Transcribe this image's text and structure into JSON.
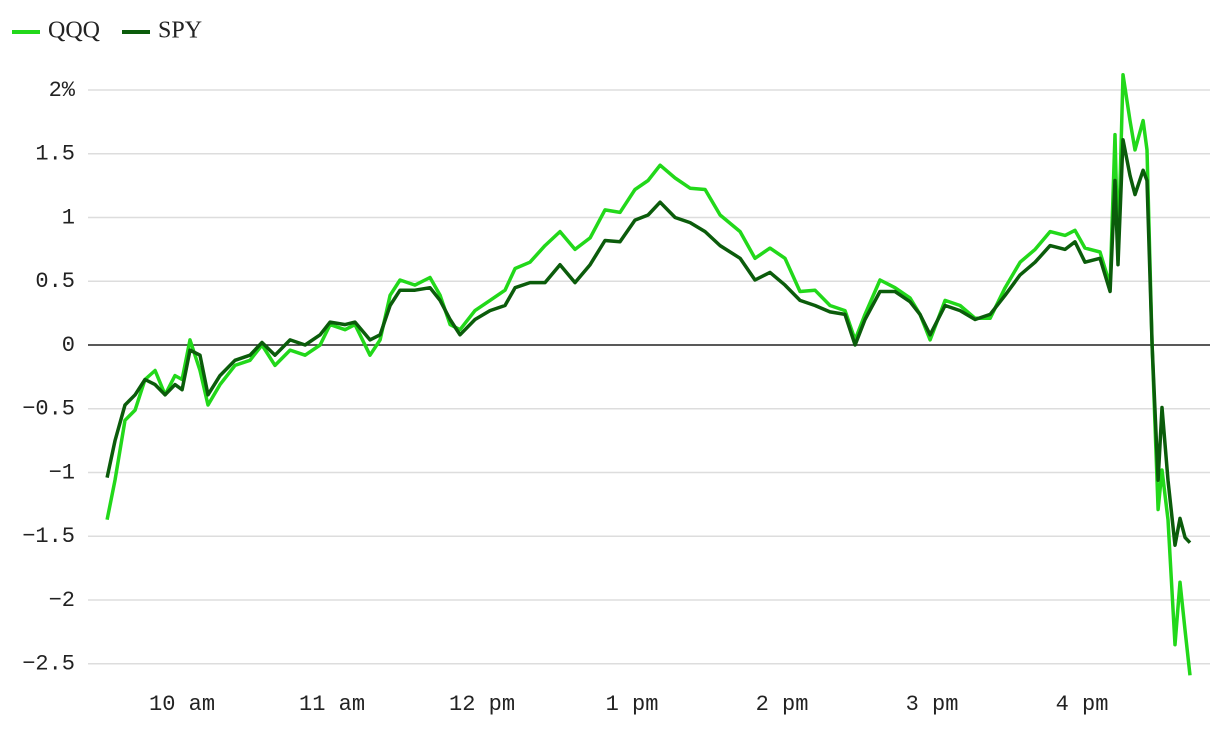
{
  "chart_data": {
    "type": "line",
    "x": [
      9.5,
      9.553,
      9.62,
      9.687,
      9.753,
      9.82,
      9.887,
      9.953,
      10,
      10.053,
      10.12,
      10.173,
      10.253,
      10.353,
      10.453,
      10.533,
      10.62,
      10.72,
      10.82,
      10.92,
      10.987,
      11.087,
      11.153,
      11.253,
      11.32,
      11.387,
      11.453,
      11.553,
      11.653,
      11.72,
      11.787,
      11.853,
      11.953,
      12.053,
      12.153,
      12.22,
      12.32,
      12.42,
      12.52,
      12.62,
      12.72,
      12.82,
      12.92,
      13.02,
      13.107,
      13.187,
      13.287,
      13.387,
      13.487,
      13.587,
      13.72,
      13.82,
      13.92,
      14.02,
      14.12,
      14.22,
      14.32,
      14.42,
      14.487,
      14.553,
      14.653,
      14.753,
      14.853,
      14.92,
      14.987,
      15.087,
      15.187,
      15.287,
      15.387,
      15.487,
      15.587,
      15.687,
      15.787,
      15.887,
      15.953,
      16.02,
      16.12,
      16.187,
      16.22,
      16.24,
      16.273,
      16.32,
      16.353,
      16.407,
      16.433,
      16.467,
      16.507,
      16.533,
      16.573,
      16.62,
      16.653,
      16.687,
      16.72
    ],
    "series": [
      {
        "name": "QQQ",
        "color": "#22d81a",
        "values": [
          -1.37,
          -1.06,
          -0.59,
          -0.51,
          -0.27,
          -0.2,
          -0.39,
          -0.24,
          -0.27,
          0.04,
          -0.2,
          -0.47,
          -0.31,
          -0.16,
          -0.12,
          0,
          -0.16,
          -0.04,
          -0.08,
          0,
          0.16,
          0.12,
          0.16,
          -0.08,
          0.04,
          0.39,
          0.51,
          0.47,
          0.53,
          0.39,
          0.16,
          0.12,
          0.27,
          0.35,
          0.43,
          0.6,
          0.65,
          0.78,
          0.89,
          0.75,
          0.84,
          1.06,
          1.04,
          1.22,
          1.29,
          1.41,
          1.31,
          1.23,
          1.22,
          1.02,
          0.89,
          0.68,
          0.76,
          0.68,
          0.42,
          0.43,
          0.31,
          0.27,
          0.04,
          0.24,
          0.51,
          0.45,
          0.37,
          0.24,
          0.04,
          0.35,
          0.31,
          0.21,
          0.21,
          0.45,
          0.65,
          0.75,
          0.89,
          0.86,
          0.9,
          0.76,
          0.73,
          0.47,
          1.65,
          0.67,
          2.12,
          1.76,
          1.53,
          1.76,
          1.53,
          0,
          -1.29,
          -0.98,
          -1.37,
          -2.35,
          -1.86,
          -2.24,
          -2.59
        ]
      },
      {
        "name": "SPY",
        "color": "#0b5c0b",
        "values": [
          -1.04,
          -0.75,
          -0.47,
          -0.39,
          -0.27,
          -0.31,
          -0.39,
          -0.31,
          -0.35,
          -0.04,
          -0.08,
          -0.39,
          -0.24,
          -0.12,
          -0.08,
          0.02,
          -0.08,
          0.04,
          0,
          0.08,
          0.18,
          0.16,
          0.18,
          0.04,
          0.08,
          0.31,
          0.43,
          0.43,
          0.45,
          0.35,
          0.2,
          0.08,
          0.2,
          0.27,
          0.31,
          0.45,
          0.49,
          0.49,
          0.63,
          0.49,
          0.63,
          0.82,
          0.81,
          0.98,
          1.02,
          1.12,
          1.0,
          0.96,
          0.89,
          0.78,
          0.68,
          0.51,
          0.57,
          0.47,
          0.35,
          0.31,
          0.26,
          0.24,
          0,
          0.2,
          0.42,
          0.42,
          0.34,
          0.24,
          0.08,
          0.31,
          0.27,
          0.2,
          0.24,
          0.39,
          0.55,
          0.65,
          0.78,
          0.75,
          0.81,
          0.65,
          0.68,
          0.42,
          1.29,
          0.63,
          1.61,
          1.33,
          1.18,
          1.37,
          1.29,
          0,
          -1.06,
          -0.49,
          -1.06,
          -1.57,
          -1.36,
          -1.51,
          -1.55
        ]
      }
    ],
    "xlim": [
      9.373,
      16.853
    ],
    "xticks": [
      {
        "value": 10,
        "label": "10 am"
      },
      {
        "value": 11,
        "label": "11 am"
      },
      {
        "value": 12,
        "label": "12 pm"
      },
      {
        "value": 13,
        "label": "1 pm"
      },
      {
        "value": 14,
        "label": "2 pm"
      },
      {
        "value": 15,
        "label": "3 pm"
      },
      {
        "value": 16,
        "label": "4 pm"
      }
    ],
    "ylim": [
      -2.627,
      2.157
    ],
    "yticks": [
      {
        "value": 2,
        "label": "2%"
      },
      1.5,
      1,
      0.5,
      0,
      {
        "value": -0.5,
        "label": "−0.5"
      },
      {
        "value": -1,
        "label": "−1"
      },
      {
        "value": -1.5,
        "label": "−1.5"
      },
      {
        "value": -2,
        "label": "−2"
      },
      {
        "value": -2.5,
        "label": "−2.5"
      }
    ],
    "grid": true
  }
}
